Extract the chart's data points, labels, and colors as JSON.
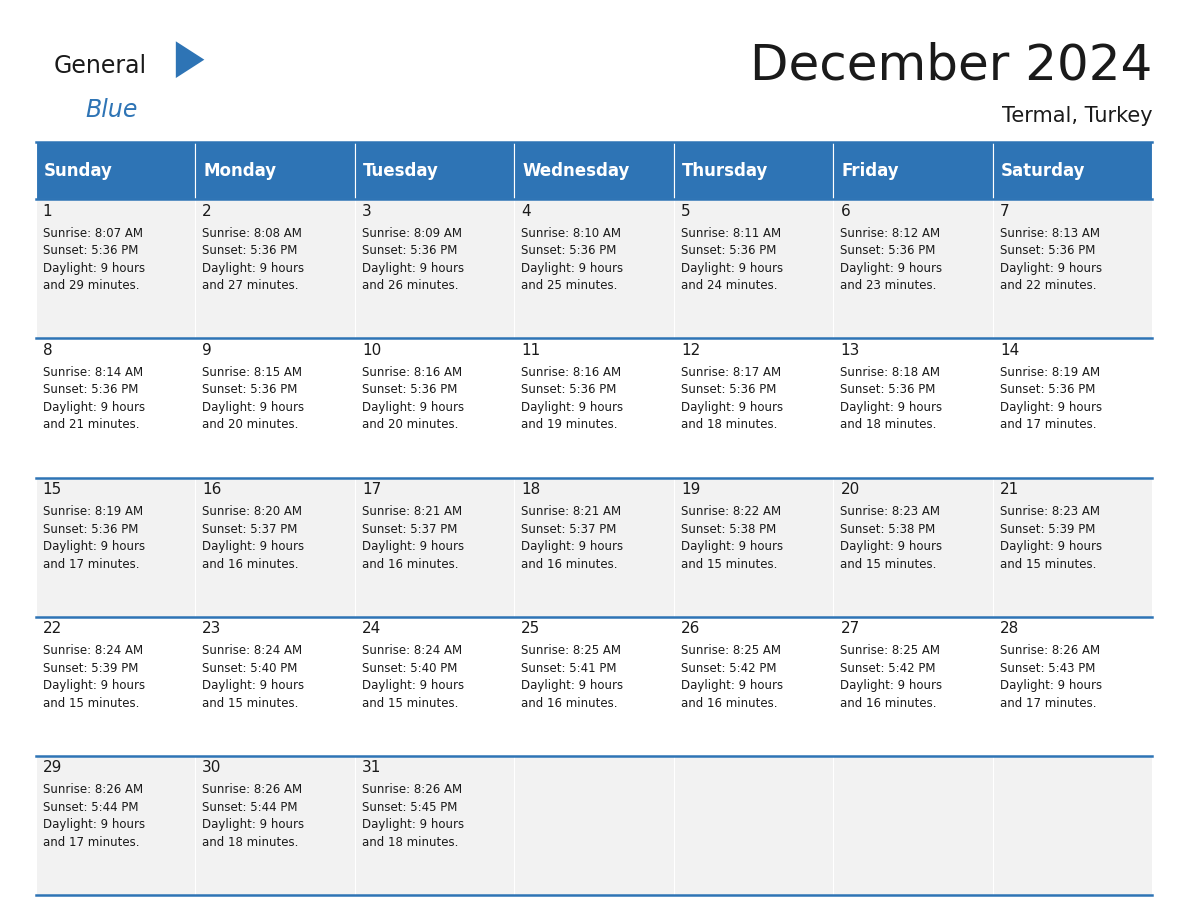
{
  "title": "December 2024",
  "subtitle": "Termal, Turkey",
  "header_bg": "#2E74B5",
  "header_text_color": "#FFFFFF",
  "days_of_week": [
    "Sunday",
    "Monday",
    "Tuesday",
    "Wednesday",
    "Thursday",
    "Friday",
    "Saturday"
  ],
  "title_font_size": 36,
  "subtitle_font_size": 15,
  "header_font_size": 12,
  "day_num_font_size": 11,
  "cell_text_font_size": 8.5,
  "cell_bg_even": "#F2F2F2",
  "cell_bg_odd": "#FFFFFF",
  "grid_line_color": "#2E74B5",
  "text_color": "#1a1a1a",
  "logo_general_color": "#1a1a1a",
  "logo_blue_color": "#2E74B5",
  "logo_triangle_color": "#2E74B5",
  "calendar": [
    [
      {
        "day": 1,
        "sunrise": "8:07 AM",
        "sunset": "5:36 PM",
        "daylight_h": "9 hours",
        "daylight_m": "and 29 minutes."
      },
      {
        "day": 2,
        "sunrise": "8:08 AM",
        "sunset": "5:36 PM",
        "daylight_h": "9 hours",
        "daylight_m": "and 27 minutes."
      },
      {
        "day": 3,
        "sunrise": "8:09 AM",
        "sunset": "5:36 PM",
        "daylight_h": "9 hours",
        "daylight_m": "and 26 minutes."
      },
      {
        "day": 4,
        "sunrise": "8:10 AM",
        "sunset": "5:36 PM",
        "daylight_h": "9 hours",
        "daylight_m": "and 25 minutes."
      },
      {
        "day": 5,
        "sunrise": "8:11 AM",
        "sunset": "5:36 PM",
        "daylight_h": "9 hours",
        "daylight_m": "and 24 minutes."
      },
      {
        "day": 6,
        "sunrise": "8:12 AM",
        "sunset": "5:36 PM",
        "daylight_h": "9 hours",
        "daylight_m": "and 23 minutes."
      },
      {
        "day": 7,
        "sunrise": "8:13 AM",
        "sunset": "5:36 PM",
        "daylight_h": "9 hours",
        "daylight_m": "and 22 minutes."
      }
    ],
    [
      {
        "day": 8,
        "sunrise": "8:14 AM",
        "sunset": "5:36 PM",
        "daylight_h": "9 hours",
        "daylight_m": "and 21 minutes."
      },
      {
        "day": 9,
        "sunrise": "8:15 AM",
        "sunset": "5:36 PM",
        "daylight_h": "9 hours",
        "daylight_m": "and 20 minutes."
      },
      {
        "day": 10,
        "sunrise": "8:16 AM",
        "sunset": "5:36 PM",
        "daylight_h": "9 hours",
        "daylight_m": "and 20 minutes."
      },
      {
        "day": 11,
        "sunrise": "8:16 AM",
        "sunset": "5:36 PM",
        "daylight_h": "9 hours",
        "daylight_m": "and 19 minutes."
      },
      {
        "day": 12,
        "sunrise": "8:17 AM",
        "sunset": "5:36 PM",
        "daylight_h": "9 hours",
        "daylight_m": "and 18 minutes."
      },
      {
        "day": 13,
        "sunrise": "8:18 AM",
        "sunset": "5:36 PM",
        "daylight_h": "9 hours",
        "daylight_m": "and 18 minutes."
      },
      {
        "day": 14,
        "sunrise": "8:19 AM",
        "sunset": "5:36 PM",
        "daylight_h": "9 hours",
        "daylight_m": "and 17 minutes."
      }
    ],
    [
      {
        "day": 15,
        "sunrise": "8:19 AM",
        "sunset": "5:36 PM",
        "daylight_h": "9 hours",
        "daylight_m": "and 17 minutes."
      },
      {
        "day": 16,
        "sunrise": "8:20 AM",
        "sunset": "5:37 PM",
        "daylight_h": "9 hours",
        "daylight_m": "and 16 minutes."
      },
      {
        "day": 17,
        "sunrise": "8:21 AM",
        "sunset": "5:37 PM",
        "daylight_h": "9 hours",
        "daylight_m": "and 16 minutes."
      },
      {
        "day": 18,
        "sunrise": "8:21 AM",
        "sunset": "5:37 PM",
        "daylight_h": "9 hours",
        "daylight_m": "and 16 minutes."
      },
      {
        "day": 19,
        "sunrise": "8:22 AM",
        "sunset": "5:38 PM",
        "daylight_h": "9 hours",
        "daylight_m": "and 15 minutes."
      },
      {
        "day": 20,
        "sunrise": "8:23 AM",
        "sunset": "5:38 PM",
        "daylight_h": "9 hours",
        "daylight_m": "and 15 minutes."
      },
      {
        "day": 21,
        "sunrise": "8:23 AM",
        "sunset": "5:39 PM",
        "daylight_h": "9 hours",
        "daylight_m": "and 15 minutes."
      }
    ],
    [
      {
        "day": 22,
        "sunrise": "8:24 AM",
        "sunset": "5:39 PM",
        "daylight_h": "9 hours",
        "daylight_m": "and 15 minutes."
      },
      {
        "day": 23,
        "sunrise": "8:24 AM",
        "sunset": "5:40 PM",
        "daylight_h": "9 hours",
        "daylight_m": "and 15 minutes."
      },
      {
        "day": 24,
        "sunrise": "8:24 AM",
        "sunset": "5:40 PM",
        "daylight_h": "9 hours",
        "daylight_m": "and 15 minutes."
      },
      {
        "day": 25,
        "sunrise": "8:25 AM",
        "sunset": "5:41 PM",
        "daylight_h": "9 hours",
        "daylight_m": "and 16 minutes."
      },
      {
        "day": 26,
        "sunrise": "8:25 AM",
        "sunset": "5:42 PM",
        "daylight_h": "9 hours",
        "daylight_m": "and 16 minutes."
      },
      {
        "day": 27,
        "sunrise": "8:25 AM",
        "sunset": "5:42 PM",
        "daylight_h": "9 hours",
        "daylight_m": "and 16 minutes."
      },
      {
        "day": 28,
        "sunrise": "8:26 AM",
        "sunset": "5:43 PM",
        "daylight_h": "9 hours",
        "daylight_m": "and 17 minutes."
      }
    ],
    [
      {
        "day": 29,
        "sunrise": "8:26 AM",
        "sunset": "5:44 PM",
        "daylight_h": "9 hours",
        "daylight_m": "and 17 minutes."
      },
      {
        "day": 30,
        "sunrise": "8:26 AM",
        "sunset": "5:44 PM",
        "daylight_h": "9 hours",
        "daylight_m": "and 18 minutes."
      },
      {
        "day": 31,
        "sunrise": "8:26 AM",
        "sunset": "5:45 PM",
        "daylight_h": "9 hours",
        "daylight_m": "and 18 minutes."
      },
      null,
      null,
      null,
      null
    ]
  ]
}
